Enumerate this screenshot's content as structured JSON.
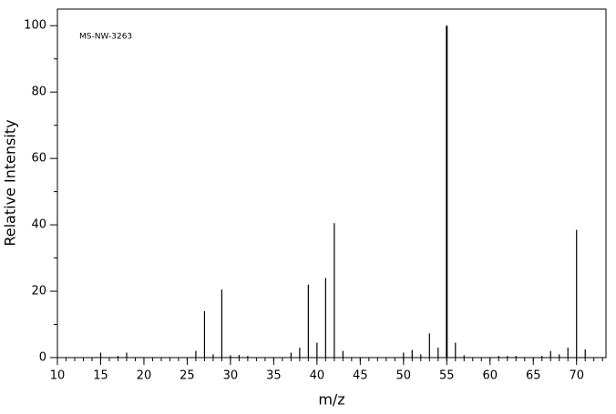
{
  "chart_data": {
    "type": "spectrum",
    "annotation": "MS-NW-3263",
    "xlabel": "m/z",
    "ylabel": "Relative Intensity",
    "x": [
      15,
      17,
      18,
      26,
      27,
      28,
      29,
      30,
      31,
      32,
      37,
      38,
      39,
      40,
      41,
      42,
      43,
      50,
      51,
      52,
      53,
      54,
      55,
      56,
      57,
      61,
      62,
      63,
      66,
      67,
      68,
      69,
      70,
      71
    ],
    "values": [
      1.5,
      0.5,
      1.5,
      2,
      14,
      1,
      20.5,
      0.7,
      0.8,
      0.5,
      1.5,
      3,
      22,
      4.5,
      24,
      40.5,
      2,
      1.5,
      2.3,
      1,
      7.3,
      3,
      100,
      4.5,
      0.7,
      0.5,
      0.5,
      0.5,
      0.5,
      2,
      1,
      3,
      38.5,
      2.5
    ],
    "color": "#000000",
    "xlim": [
      10,
      73.4
    ],
    "ylim": [
      0,
      105
    ],
    "xticks": [
      10,
      15,
      20,
      25,
      30,
      35,
      40,
      45,
      50,
      55,
      60,
      65,
      70
    ],
    "yticks": [
      0,
      20,
      40,
      60,
      80,
      100
    ]
  }
}
